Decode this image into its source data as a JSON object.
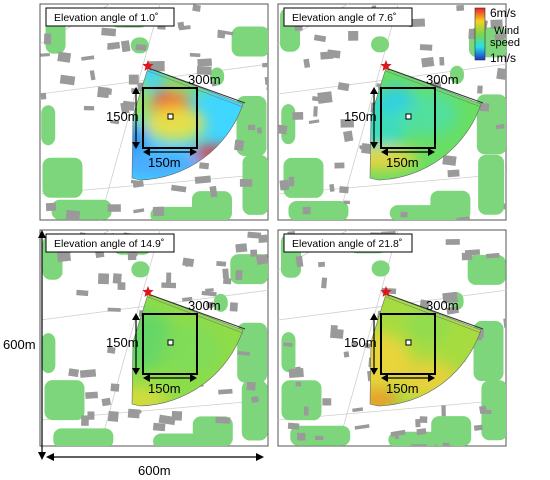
{
  "panels": [
    {
      "title": "Elevation angle of 1.0˚",
      "variant": "a1"
    },
    {
      "title": "Elevation angle of 7.6˚",
      "variant": "a2"
    },
    {
      "title": "Elevation angle of 14.9˚",
      "variant": "a3"
    },
    {
      "title": "Elevation angle of 21.8˚",
      "variant": "a4"
    }
  ],
  "scan_range_label": "300m",
  "box_height_label": "150m",
  "box_width_label": "150m",
  "domain_height_label": "600m",
  "domain_width_label": "600m",
  "colorbar": {
    "max_label": "6m/s",
    "title_line1": "Wind",
    "title_line2": "speed",
    "min_label": "1m/s",
    "stops": [
      "#e8202a",
      "#f6d21e",
      "#7dd64a",
      "#26e0e8",
      "#1e2fc8"
    ]
  },
  "colors": {
    "building": "#9a9a9a",
    "vegetation": "#7ed67c",
    "lidar_marker": "#e0141e",
    "frame": "#000000"
  },
  "icons": {
    "lidar": "star-icon",
    "center": "square-marker-icon"
  }
}
